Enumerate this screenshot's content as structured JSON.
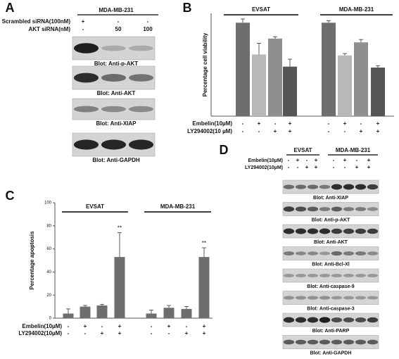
{
  "panel_a": {
    "letter": "A",
    "header": "MDA-MB-231",
    "rows": [
      {
        "label": "Scrambled siRNA(100nM)",
        "values": [
          "+",
          "-",
          "-"
        ]
      },
      {
        "label": "AKT siRNA(nM)",
        "values": [
          "-",
          "50",
          "100"
        ]
      }
    ],
    "blots": [
      "Blot: Anti-p-AKT",
      "Blot: Anti-AKT",
      "Blot: Anti-XIAP",
      "Blot: Anti-GAPDH"
    ]
  },
  "chart_data": [
    {
      "type": "bar",
      "letter": "B",
      "ylabel": "Percentage cell viability",
      "groups": [
        "EVSAT",
        "MDA-MB-231"
      ],
      "values": [
        100,
        66,
        83,
        53,
        100,
        65,
        79,
        52
      ],
      "errors": [
        4,
        12,
        2,
        8,
        2,
        2,
        3,
        2
      ],
      "colors": [
        "#6e6e6e",
        "#b8b8b8",
        "#8f8f8f",
        "#555555",
        "#6e6e6e",
        "#b8b8b8",
        "#8f8f8f",
        "#555555"
      ],
      "ylim": [
        0,
        110
      ],
      "rows": [
        {
          "label": "Embelin(10µM)",
          "signs": [
            "-",
            "+",
            "-",
            "+",
            "-",
            "+",
            "-",
            "+"
          ]
        },
        {
          "label": "LY294002(10 µM)",
          "signs": [
            "-",
            "-",
            "+",
            "+",
            "-",
            "-",
            "+",
            "+"
          ]
        }
      ]
    },
    {
      "type": "bar",
      "letter": "C",
      "ylabel": "Percentage apoptosis",
      "groups": [
        "EVSAT",
        "MDA-MB-231"
      ],
      "values": [
        4,
        10,
        11,
        53,
        4,
        9,
        8,
        53
      ],
      "errors": [
        4,
        1,
        1,
        21,
        3,
        2,
        2,
        8
      ],
      "color": "#6e6e6e",
      "ylim": [
        0,
        100
      ],
      "yticks": [
        0,
        20,
        40,
        60,
        80,
        100
      ],
      "value_annotations": [
        null,
        null,
        null,
        "**",
        null,
        null,
        null,
        "**"
      ],
      "rows": [
        {
          "label": "Embelin(10µM)",
          "signs": [
            "-",
            "+",
            "-",
            "+",
            "-",
            "+",
            "-",
            "+"
          ]
        },
        {
          "label": "LY294002(10µM)",
          "signs": [
            "-",
            "-",
            "+",
            "+",
            "-",
            "-",
            "+",
            "+"
          ]
        }
      ]
    }
  ],
  "panel_d": {
    "letter": "D",
    "groups": [
      "EVSAT",
      "MDA-MB-231"
    ],
    "rows": [
      {
        "label": "Embelin(10µM)",
        "signs": [
          "-",
          "+",
          "-",
          "+",
          "-",
          "+",
          "-",
          "+"
        ]
      },
      {
        "label": "LY294002(10µM)",
        "signs": [
          "-",
          "-",
          "+",
          "+",
          "-",
          "-",
          "+",
          "+"
        ]
      }
    ],
    "blots": [
      "Blot: Anti-XIAP",
      "Blot: Anti-p-AKT",
      "Blot: Anti-AKT",
      "Blot: Anti-Bcl-Xl",
      "Blot: Anti-caspase-9",
      "Blot: Anti-caspase-3",
      "Blot: Anti-PARP",
      "Blot: Anti-GAPDH"
    ]
  }
}
